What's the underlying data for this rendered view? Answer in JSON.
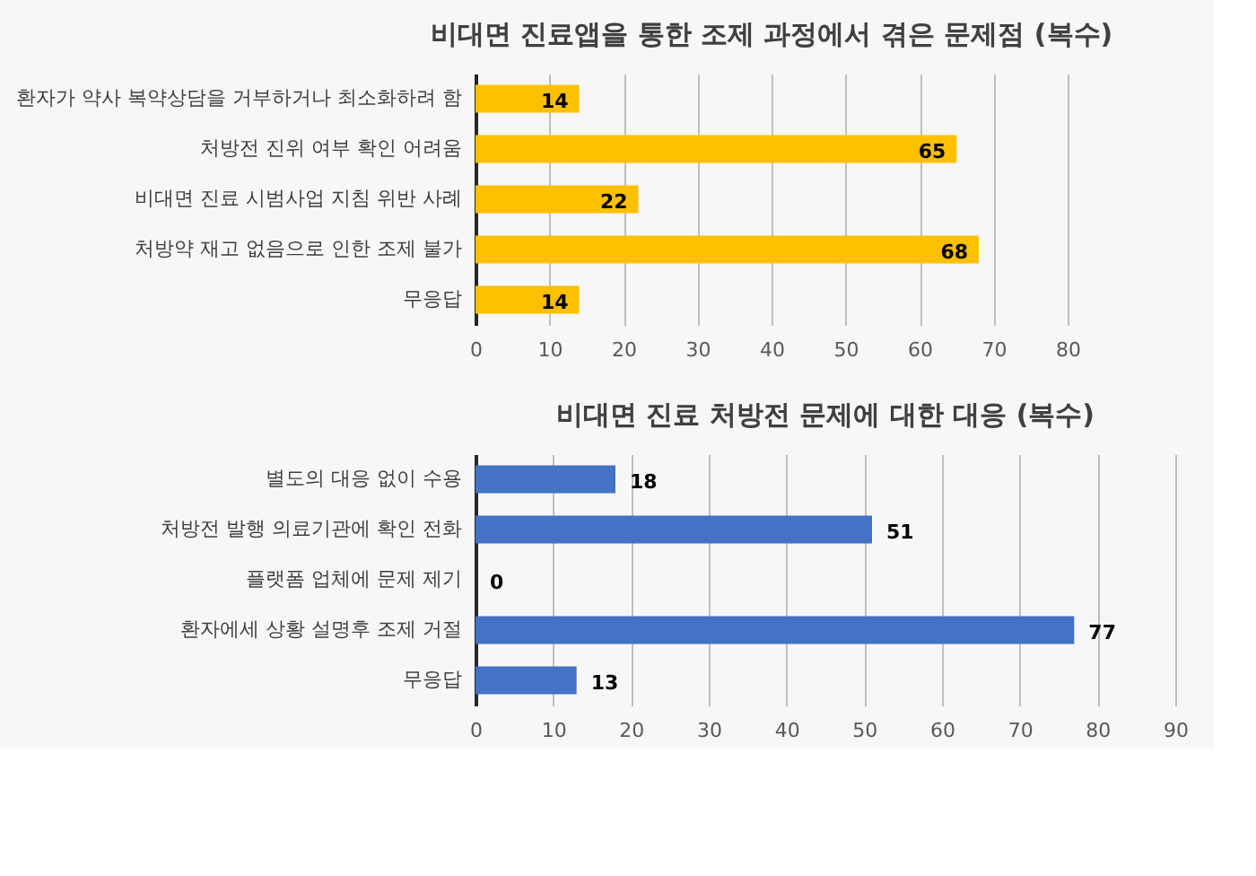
{
  "chart_data": [
    {
      "type": "bar",
      "orientation": "horizontal",
      "title": "비대면 진료앱을 통한 조제 과정에서 겪은 문제점 (복수)",
      "categories": [
        "환자가 약사 복약상담을 거부하거나 최소화하려 함",
        "처방전 진위 여부 확인 어려움",
        "비대면 진료 시범사업 지침 위반 사례",
        "처방약 재고 없음으로 인한 조제 불가",
        "무응답"
      ],
      "values": [
        14,
        65,
        22,
        68,
        14
      ],
      "color": "#ffc000",
      "xlim": [
        0,
        80
      ],
      "xticks": [
        0,
        10,
        20,
        30,
        40,
        50,
        60,
        70,
        80
      ],
      "grid": "x",
      "data_labels": true
    },
    {
      "type": "bar",
      "orientation": "horizontal",
      "title": "비대면 진료 처방전 문제에 대한 대응 (복수)",
      "categories": [
        "별도의 대응 없이 수용",
        "처방전 발행 의료기관에 확인 전화",
        "플랫폼 업체에 문제 제기",
        "환자에세 상황 설명후 조제 거절",
        "무응답"
      ],
      "values": [
        18,
        51,
        0,
        77,
        13
      ],
      "color": "#4472c4",
      "xlim": [
        0,
        90
      ],
      "xticks": [
        0,
        10,
        20,
        30,
        40,
        50,
        60,
        70,
        80,
        90
      ],
      "grid": "x",
      "data_labels": true
    }
  ]
}
